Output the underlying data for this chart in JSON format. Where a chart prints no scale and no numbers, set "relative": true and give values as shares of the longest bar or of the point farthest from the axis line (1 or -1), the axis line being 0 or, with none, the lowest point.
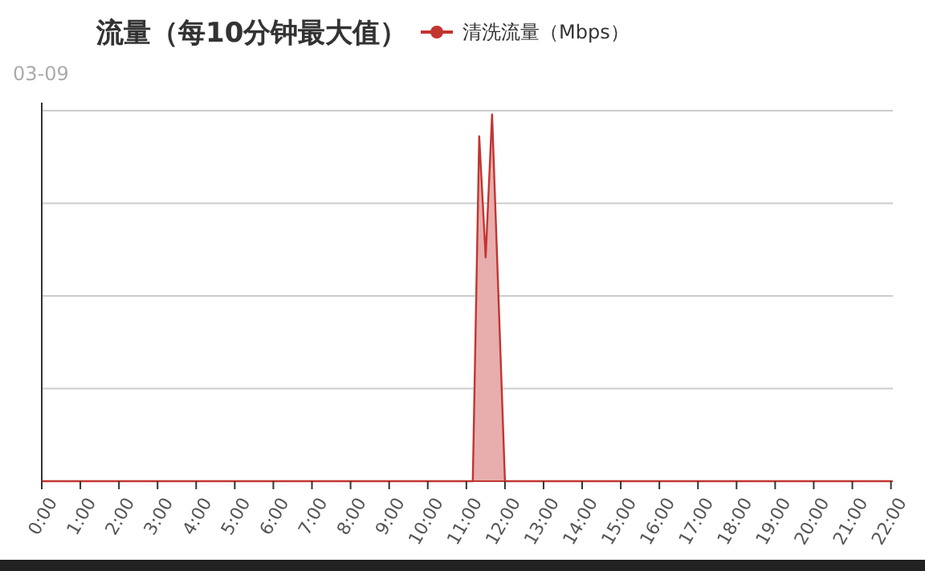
{
  "chart_data": {
    "type": "area",
    "title": "流量（每10分钟最大值）",
    "subtitle": "03-09",
    "relative": true,
    "grid": "y",
    "legend": "top",
    "xlim": [
      0,
      22.05
    ],
    "xticks": [
      {
        "value": 0,
        "label": "0:00"
      },
      {
        "value": 1,
        "label": "1:00"
      },
      {
        "value": 2,
        "label": "2:00"
      },
      {
        "value": 3,
        "label": "3:00"
      },
      {
        "value": 4,
        "label": "4:00"
      },
      {
        "value": 5,
        "label": "5:00"
      },
      {
        "value": 6,
        "label": "6:00"
      },
      {
        "value": 7,
        "label": "7:00"
      },
      {
        "value": 8,
        "label": "8:00"
      },
      {
        "value": 9,
        "label": "9:00"
      },
      {
        "value": 10,
        "label": "10:00"
      },
      {
        "value": 11,
        "label": "11:00"
      },
      {
        "value": 12,
        "label": "12:00"
      },
      {
        "value": 13,
        "label": "13:00"
      },
      {
        "value": 14,
        "label": "14:00"
      },
      {
        "value": 15,
        "label": "15:00"
      },
      {
        "value": 16,
        "label": "16:00"
      },
      {
        "value": 17,
        "label": "17:00"
      },
      {
        "value": 18,
        "label": "18:00"
      },
      {
        "value": 19,
        "label": "19:00"
      },
      {
        "value": 20,
        "label": "20:00"
      },
      {
        "value": 21,
        "label": "21:00"
      },
      {
        "value": 22,
        "label": "22:00"
      }
    ],
    "series": [
      {
        "name": "清洗流量（Mbps）",
        "color": "#c23531",
        "x": [
          0,
          11.1667,
          11.3333,
          11.5,
          11.6667,
          12,
          22
        ],
        "values": [
          0,
          0,
          0.94,
          0.61,
          1,
          0,
          0
        ]
      }
    ]
  }
}
